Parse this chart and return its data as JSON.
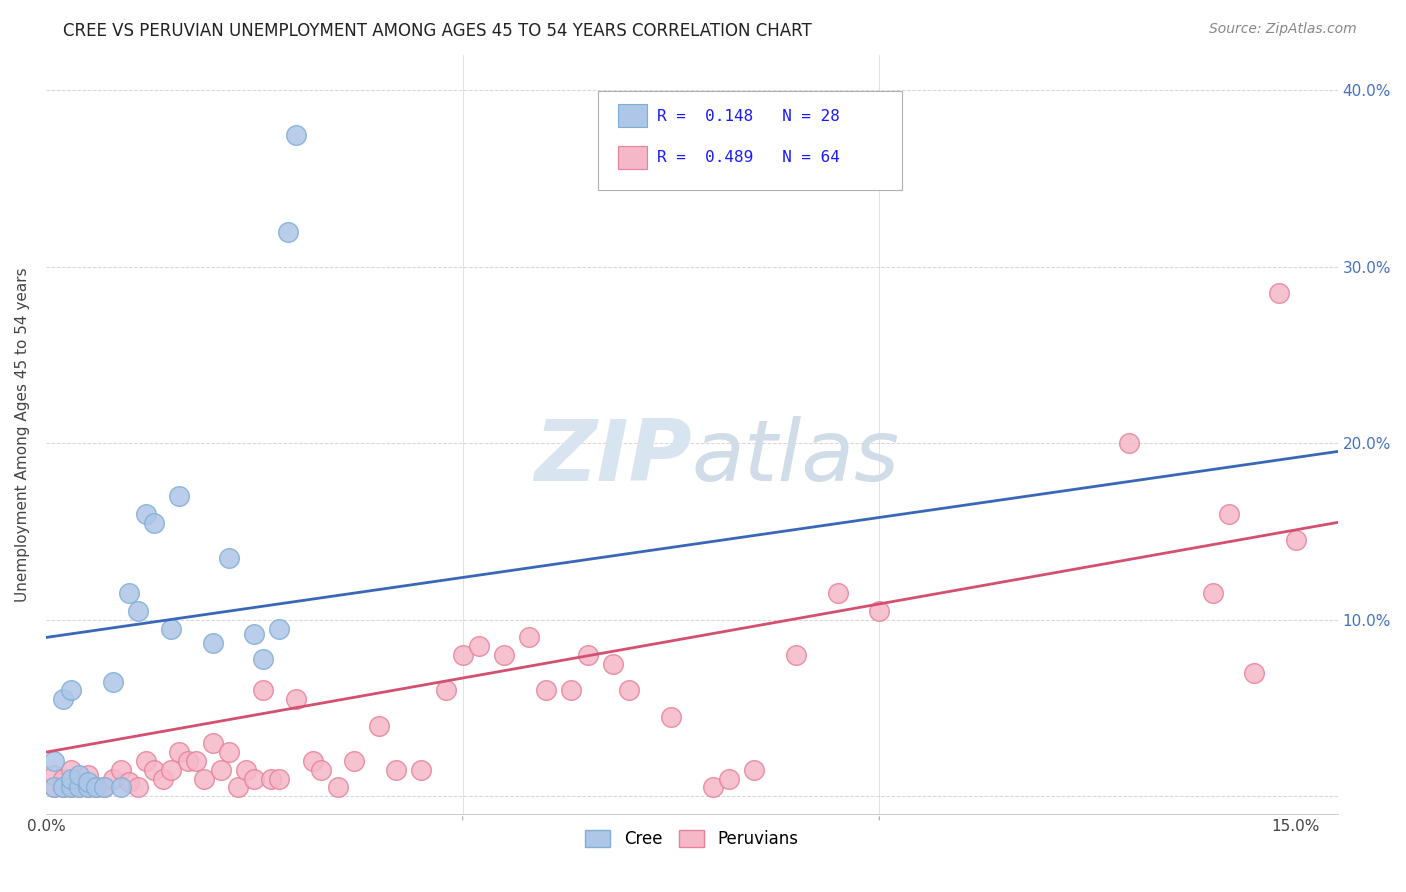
{
  "title": "CREE VS PERUVIAN UNEMPLOYMENT AMONG AGES 45 TO 54 YEARS CORRELATION CHART",
  "source": "Source: ZipAtlas.com",
  "ylabel": "Unemployment Among Ages 45 to 54 years",
  "xlim": [
    0,
    0.155
  ],
  "ylim": [
    -0.01,
    0.42
  ],
  "xticks": [
    0.0,
    0.05,
    0.1,
    0.15
  ],
  "yticks": [
    0.0,
    0.1,
    0.2,
    0.3,
    0.4
  ],
  "xtick_labels": [
    "0.0%",
    "",
    "",
    "15.0%"
  ],
  "ytick_labels_right": [
    "",
    "10.0%",
    "20.0%",
    "30.0%",
    "40.0%"
  ],
  "cree_color": "#aec6e8",
  "cree_edge_color": "#7fafd4",
  "peruvian_color": "#f5b8c8",
  "peruvian_edge_color": "#e8809a",
  "cree_line_color": "#3a68b8",
  "peruvian_line_color": "#d45070",
  "cree_intercept": 0.09,
  "cree_slope": 0.68,
  "peruvian_intercept": 0.025,
  "peruvian_slope": 0.84,
  "cree_x": [
    0.001,
    0.001,
    0.002,
    0.002,
    0.003,
    0.003,
    0.003,
    0.004,
    0.004,
    0.005,
    0.005,
    0.006,
    0.007,
    0.008,
    0.009,
    0.01,
    0.011,
    0.012,
    0.013,
    0.015,
    0.016,
    0.02,
    0.022,
    0.025,
    0.026,
    0.028,
    0.029,
    0.03
  ],
  "cree_y": [
    0.005,
    0.02,
    0.005,
    0.055,
    0.005,
    0.01,
    0.06,
    0.005,
    0.012,
    0.005,
    0.008,
    0.005,
    0.005,
    0.065,
    0.005,
    0.115,
    0.105,
    0.16,
    0.155,
    0.095,
    0.17,
    0.087,
    0.135,
    0.092,
    0.078,
    0.095,
    0.32,
    0.375
  ],
  "peruvian_x": [
    0.001,
    0.001,
    0.002,
    0.002,
    0.003,
    0.003,
    0.004,
    0.004,
    0.005,
    0.005,
    0.006,
    0.007,
    0.008,
    0.009,
    0.01,
    0.011,
    0.012,
    0.013,
    0.014,
    0.015,
    0.016,
    0.017,
    0.018,
    0.019,
    0.02,
    0.021,
    0.022,
    0.023,
    0.024,
    0.025,
    0.026,
    0.027,
    0.028,
    0.03,
    0.032,
    0.033,
    0.035,
    0.037,
    0.04,
    0.042,
    0.045,
    0.048,
    0.05,
    0.052,
    0.055,
    0.058,
    0.06,
    0.063,
    0.065,
    0.068,
    0.07,
    0.075,
    0.08,
    0.082,
    0.085,
    0.09,
    0.095,
    0.1,
    0.13,
    0.14,
    0.142,
    0.145,
    0.148,
    0.15
  ],
  "peruvian_y": [
    0.005,
    0.012,
    0.005,
    0.01,
    0.005,
    0.015,
    0.005,
    0.01,
    0.005,
    0.012,
    0.005,
    0.005,
    0.01,
    0.015,
    0.008,
    0.005,
    0.02,
    0.015,
    0.01,
    0.015,
    0.025,
    0.02,
    0.02,
    0.01,
    0.03,
    0.015,
    0.025,
    0.005,
    0.015,
    0.01,
    0.06,
    0.01,
    0.01,
    0.055,
    0.02,
    0.015,
    0.005,
    0.02,
    0.04,
    0.015,
    0.015,
    0.06,
    0.08,
    0.085,
    0.08,
    0.09,
    0.06,
    0.06,
    0.08,
    0.075,
    0.06,
    0.045,
    0.005,
    0.01,
    0.015,
    0.08,
    0.115,
    0.105,
    0.2,
    0.115,
    0.16,
    0.07,
    0.285,
    0.145
  ],
  "watermark_zip_color": "#d8e4f0",
  "watermark_atlas_color": "#d0dce8",
  "title_fontsize": 12,
  "source_fontsize": 10,
  "tick_fontsize": 11,
  "ylabel_fontsize": 11
}
